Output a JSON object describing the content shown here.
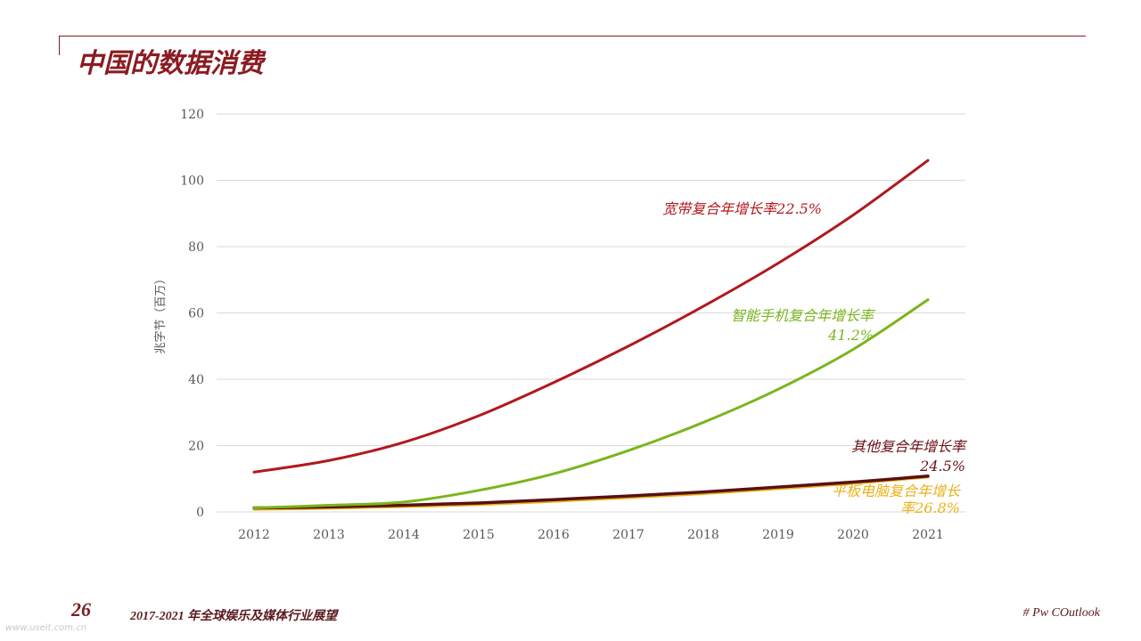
{
  "slide": {
    "title": "中国的数据消费",
    "page_number": "26",
    "footer_text": "2017-2021 年全球娱乐及媒体行业展望",
    "hashtag": "# Pw COutlook",
    "watermark": "www.useit.com.cn"
  },
  "colors": {
    "broadband": "#b0191e",
    "smartphone": "#7ab51d",
    "tablet": "#e8b21a",
    "other": "#5a1010",
    "grid": "#d9d9d9",
    "axis_text": "#595959"
  },
  "chart_data": {
    "type": "line",
    "ylabel": "兆字节（百万）",
    "ylim": [
      0,
      120
    ],
    "yticks": [
      0,
      20,
      40,
      60,
      80,
      100,
      120
    ],
    "x": [
      "2012",
      "2013",
      "2014",
      "2015",
      "2016",
      "2017",
      "2018",
      "2019",
      "2020",
      "2021"
    ],
    "series": [
      {
        "key": "broadband",
        "label_lines": [
          "宽带复合年增长率22.5%"
        ],
        "values": [
          12,
          15.5,
          21,
          29,
          39,
          50,
          62,
          75,
          89.5,
          106
        ]
      },
      {
        "key": "smartphone",
        "label_lines": [
          "智能手机复合年增长率",
          "41.2%"
        ],
        "values": [
          1.2,
          2,
          3,
          6.5,
          11.5,
          18.5,
          27,
          37,
          49,
          64
        ]
      },
      {
        "key": "tablet",
        "label_lines": [
          "平板电脑复合年增长",
          "率26.8%"
        ],
        "values": [
          0.8,
          1.1,
          1.6,
          2.2,
          3.2,
          4.3,
          5.5,
          7,
          8.6,
          10.5
        ]
      },
      {
        "key": "other",
        "label_lines": [
          "其他复合年增长率",
          "24.5%"
        ],
        "values": [
          1.2,
          1.5,
          2,
          2.7,
          3.7,
          4.8,
          6,
          7.5,
          9,
          10.8
        ]
      }
    ],
    "grid": true
  }
}
